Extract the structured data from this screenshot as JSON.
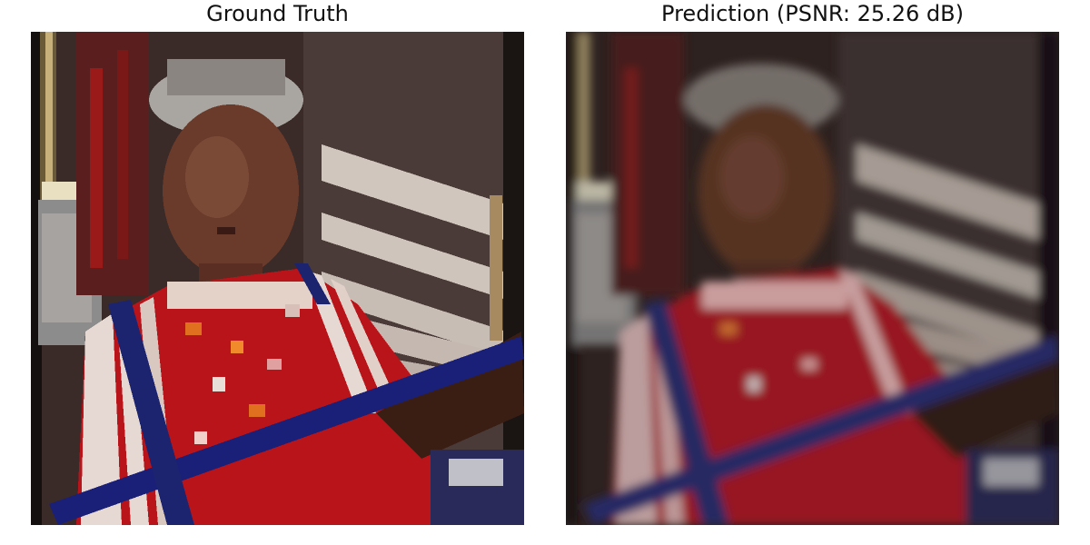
{
  "figure": {
    "panels": [
      {
        "id": "ground_truth",
        "title": "Ground Truth",
        "image_description": "pixelated photo of a smiling child wearing a red and white striped dress with orange floral pattern; blue rope diagonally across; striped red/white/dark background"
      },
      {
        "id": "prediction",
        "title": "Prediction (PSNR: 25.26 dB)",
        "psnr_db": 25.26,
        "image_description": "blurrier reconstruction of the same scene with muted, smeared colors"
      }
    ]
  },
  "colors": {
    "background": "#ffffff",
    "title_text": "#111111",
    "dress_red": "#b8141a",
    "stripe_white": "#e6d8d2",
    "rope_blue": "#1a1f78",
    "skin": "#6a3a2a",
    "bg_stripe_light": "#d6ccc4",
    "bg_dark": "#2a1e1c"
  }
}
